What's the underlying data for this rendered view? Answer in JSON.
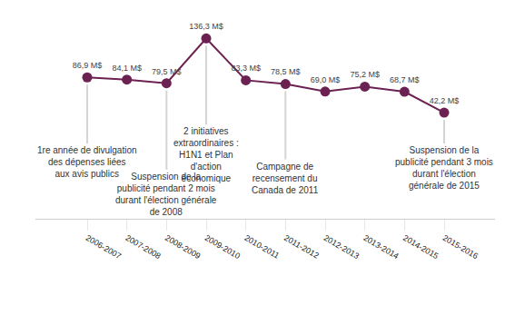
{
  "chart_data": {
    "type": "line",
    "categories": [
      "2006-2007",
      "2007-2008",
      "2008-2009",
      "2009-2010",
      "2010-2011",
      "2011-2012",
      "2012-2013",
      "2013-2014",
      "2014-2015",
      "2015-2016"
    ],
    "values": [
      86.9,
      84.1,
      79.5,
      136.3,
      83.3,
      78.5,
      69.0,
      75.2,
      68.7,
      42.2
    ],
    "value_labels": [
      "86,9 M$",
      "84,1 M$",
      "79,5 M$",
      "136,3 M$",
      "83,3 M$",
      "78,5 M$",
      "69,0 M$",
      "75,2 M$",
      "68,7 M$",
      "42,2 M$"
    ],
    "color": "#6b2152",
    "marker": "circle",
    "data_labels": true,
    "tick_labels": "x",
    "grid": false,
    "annotations": [
      {
        "category": "2006-2007",
        "text": "1re année de divulgation\ndes dépenses liées\naux avis publics"
      },
      {
        "category": "2008-2009",
        "text": "Suspension de la\npublicité pendant 2 mois\ndurant l'élection générale\nde 2008"
      },
      {
        "category": "2009-2010",
        "text": "2 initiatives\nextraordinaires :\nH1N1 et Plan\nd'action\néconomique"
      },
      {
        "category": "2011-2012",
        "text": "Campagne de\nrecensement du\nCanada de 2011"
      },
      {
        "category": "2015-2016",
        "text": "Suspension de la\npublicité pendant 3 mois\ndurant l'élection\ngénérale de 2015"
      }
    ]
  }
}
